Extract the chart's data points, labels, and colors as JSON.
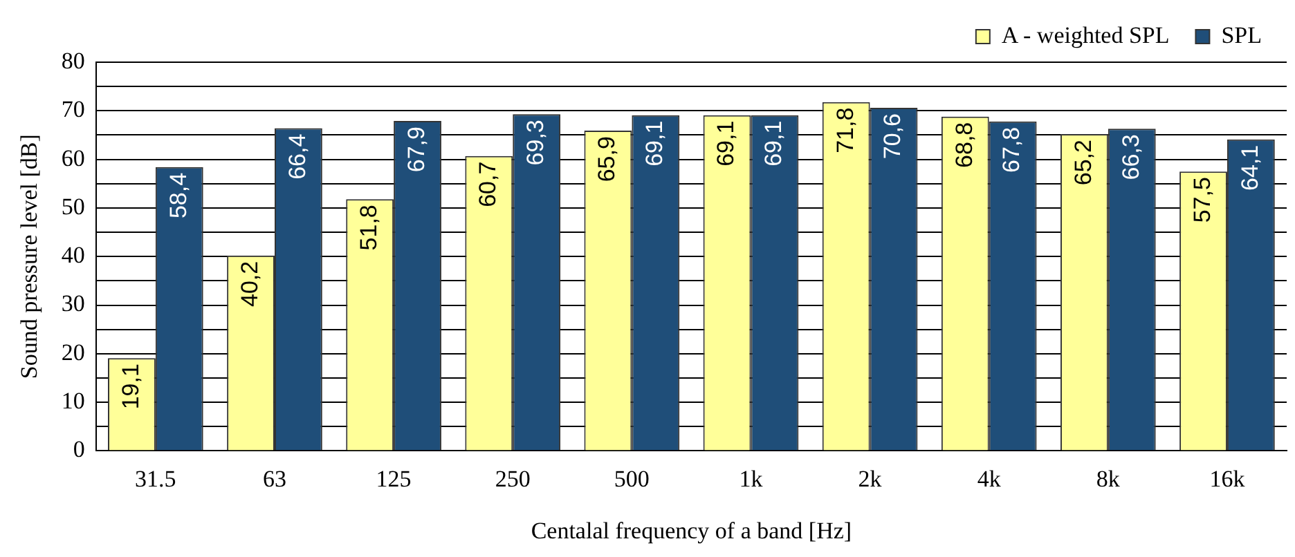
{
  "chart_data": {
    "type": "bar",
    "xlabel": "Centalal frequency of a band [Hz]",
    "ylabel": "Sound pressure level [dB]",
    "categories": [
      "31.5",
      "63",
      "125",
      "250",
      "500",
      "1k",
      "2k",
      "4k",
      "8k",
      "16k"
    ],
    "series": [
      {
        "name": "A - weighted SPL",
        "color": "#ffff99",
        "values": [
          19.1,
          40.2,
          51.8,
          60.7,
          65.9,
          69.1,
          71.8,
          68.8,
          65.2,
          57.5
        ],
        "value_labels": [
          "19,1",
          "40,2",
          "51,8",
          "60,7",
          "65,9",
          "69,1",
          "71,8",
          "68,8",
          "65,2",
          "57,5"
        ]
      },
      {
        "name": "SPL",
        "color": "#1f4e79",
        "values": [
          58.4,
          66.4,
          67.9,
          69.3,
          69.1,
          69.1,
          70.6,
          67.8,
          66.3,
          64.1
        ],
        "value_labels": [
          "58,4",
          "66,4",
          "67,9",
          "69,3",
          "69,1",
          "69,1",
          "70,6",
          "67,8",
          "66,3",
          "64,1"
        ]
      }
    ],
    "ylim": [
      0,
      80
    ],
    "yticks": [
      0,
      {
        "value": 5,
        "label": null
      },
      10,
      {
        "value": 15,
        "label": null
      },
      20,
      {
        "value": 25,
        "label": null
      },
      30,
      {
        "value": 35,
        "label": null
      },
      40,
      {
        "value": 45,
        "label": null
      },
      50,
      {
        "value": 55,
        "label": null
      },
      60,
      {
        "value": 65,
        "label": null
      },
      70,
      {
        "value": 75,
        "label": null
      },
      80
    ],
    "grid": "y",
    "legend": "top right"
  }
}
